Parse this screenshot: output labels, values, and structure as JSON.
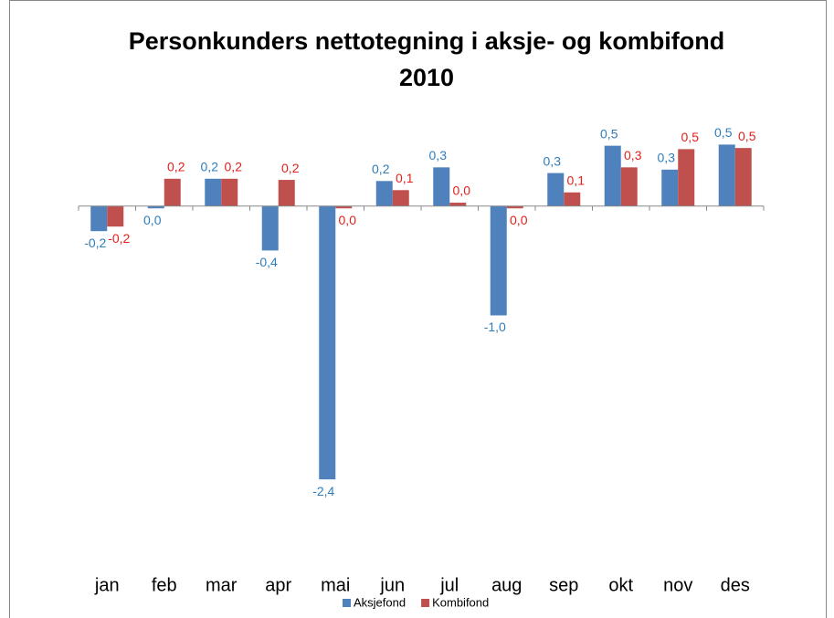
{
  "chart_data": {
    "type": "bar",
    "title": [
      "Personkunders nettotegning i aksje- og kombifond",
      "2010"
    ],
    "categories": [
      "jan",
      "feb",
      "mar",
      "apr",
      "mai",
      "jun",
      "jul",
      "aug",
      "sep",
      "okt",
      "nov",
      "des"
    ],
    "series": [
      {
        "name": "Aksjefond",
        "color": "#4f81bd",
        "label_color": "#2e7dbd",
        "values": [
          -0.22,
          -0.02,
          0.24,
          -0.39,
          -2.4,
          0.22,
          0.34,
          -0.96,
          0.29,
          0.53,
          0.32,
          0.54
        ],
        "value_labels": [
          "-0,2",
          "0,0",
          "0,2",
          "-0,4",
          "-2,4",
          "0,2",
          "0,3",
          "-1,0",
          "0,3",
          "0,5",
          "0,3",
          "0,5"
        ]
      },
      {
        "name": "Kombifond",
        "color": "#c0504d",
        "label_color": "#e3201c",
        "values": [
          -0.18,
          0.24,
          0.24,
          0.23,
          -0.02,
          0.14,
          0.03,
          -0.02,
          0.12,
          0.34,
          0.5,
          0.51
        ],
        "value_labels": [
          "-0,2",
          "0,2",
          "0,2",
          "0,2",
          "0,0",
          "0,1",
          "0,0",
          "0,0",
          "0,1",
          "0,3",
          "0,5",
          "0,5"
        ]
      }
    ],
    "ylim": [
      -3,
      1
    ],
    "legend": "bottom"
  }
}
